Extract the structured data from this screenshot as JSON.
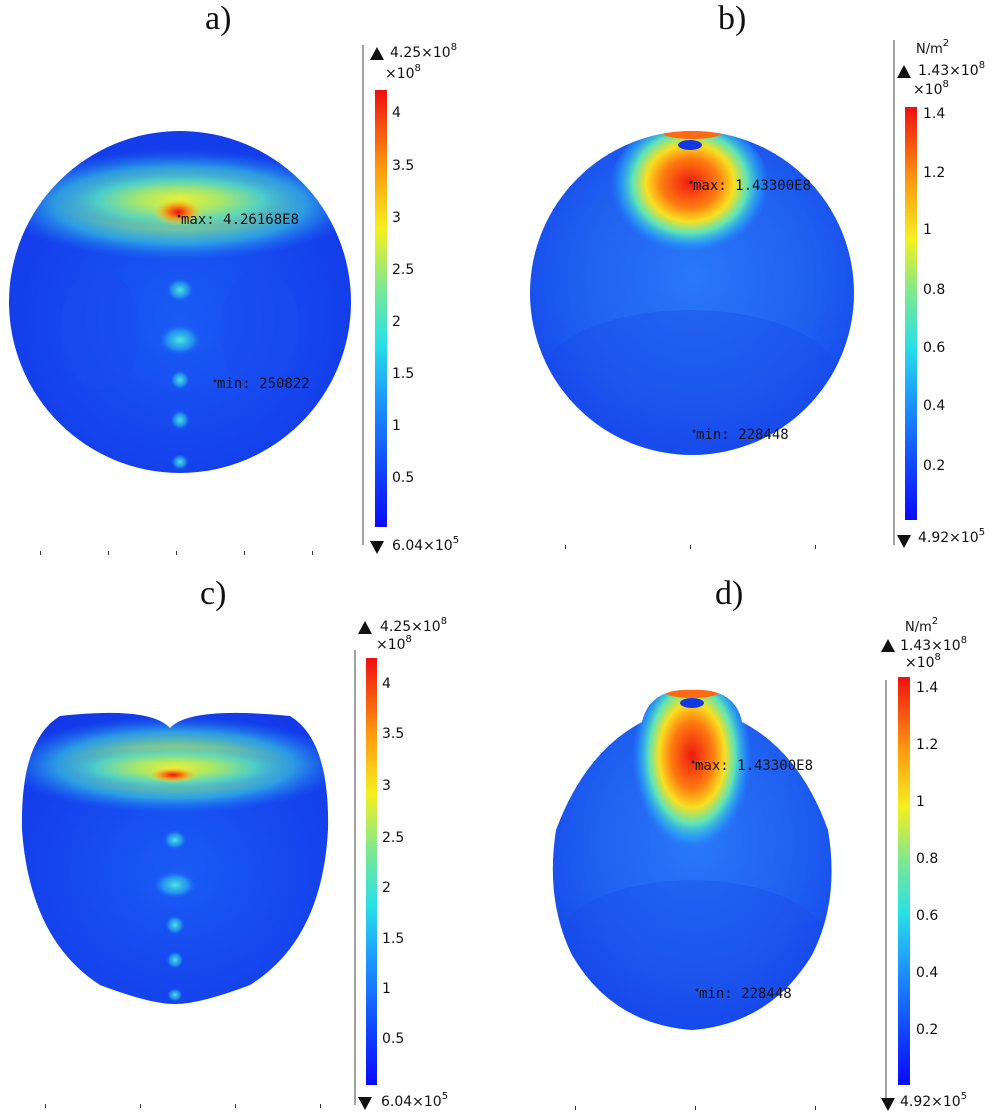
{
  "panels": {
    "a": {
      "label": "a)",
      "colorbar": {
        "max_label": "4.25×10",
        "max_exp": "8",
        "multiplier": "×10",
        "multiplier_exp": "8",
        "min_label": "6.04×10",
        "min_exp": "5",
        "ticks": [
          "4",
          "3.5",
          "3",
          "2.5",
          "2",
          "1.5",
          "1",
          "0.5"
        ]
      },
      "probe_max": "max: 4.26168E8",
      "probe_min": "min: 250822"
    },
    "b": {
      "label": "b)",
      "colorbar": {
        "unit": "N/m",
        "unit_exp": "2",
        "max_label": "1.43×10",
        "max_exp": "8",
        "multiplier": "×10",
        "multiplier_exp": "8",
        "min_label": "4.92×10",
        "min_exp": "5",
        "ticks": [
          "1.4",
          "1.2",
          "1",
          "0.8",
          "0.6",
          "0.4",
          "0.2"
        ]
      },
      "probe_max": "max: 1.43300E8",
      "probe_min": "min: 228448"
    },
    "c": {
      "label": "c)",
      "colorbar": {
        "max_label": "4.25×10",
        "max_exp": "8",
        "multiplier": "×10",
        "multiplier_exp": "8",
        "min_label": "6.04×10",
        "min_exp": "5",
        "ticks": [
          "4",
          "3.5",
          "3",
          "2.5",
          "2",
          "1.5",
          "1",
          "0.5"
        ]
      }
    },
    "d": {
      "label": "d)",
      "colorbar": {
        "unit": "N/m",
        "unit_exp": "2",
        "max_label": "1.43×10",
        "max_exp": "8",
        "multiplier": "×10",
        "multiplier_exp": "8",
        "min_label": "4.92×10",
        "min_exp": "5",
        "ticks": [
          "1.4",
          "1.2",
          "1",
          "0.8",
          "0.6",
          "0.4",
          "0.2"
        ]
      },
      "probe_max": "max: 1.43300E8",
      "probe_min": "min: 228448"
    }
  },
  "colors": {
    "jet_low": "#0a12ff",
    "jet_mid_low": "#1e8cff",
    "jet_mid": "#22e0d8",
    "jet_mid_high": "#e8f020",
    "jet_high": "#ff8800",
    "jet_max": "#ee1111"
  }
}
